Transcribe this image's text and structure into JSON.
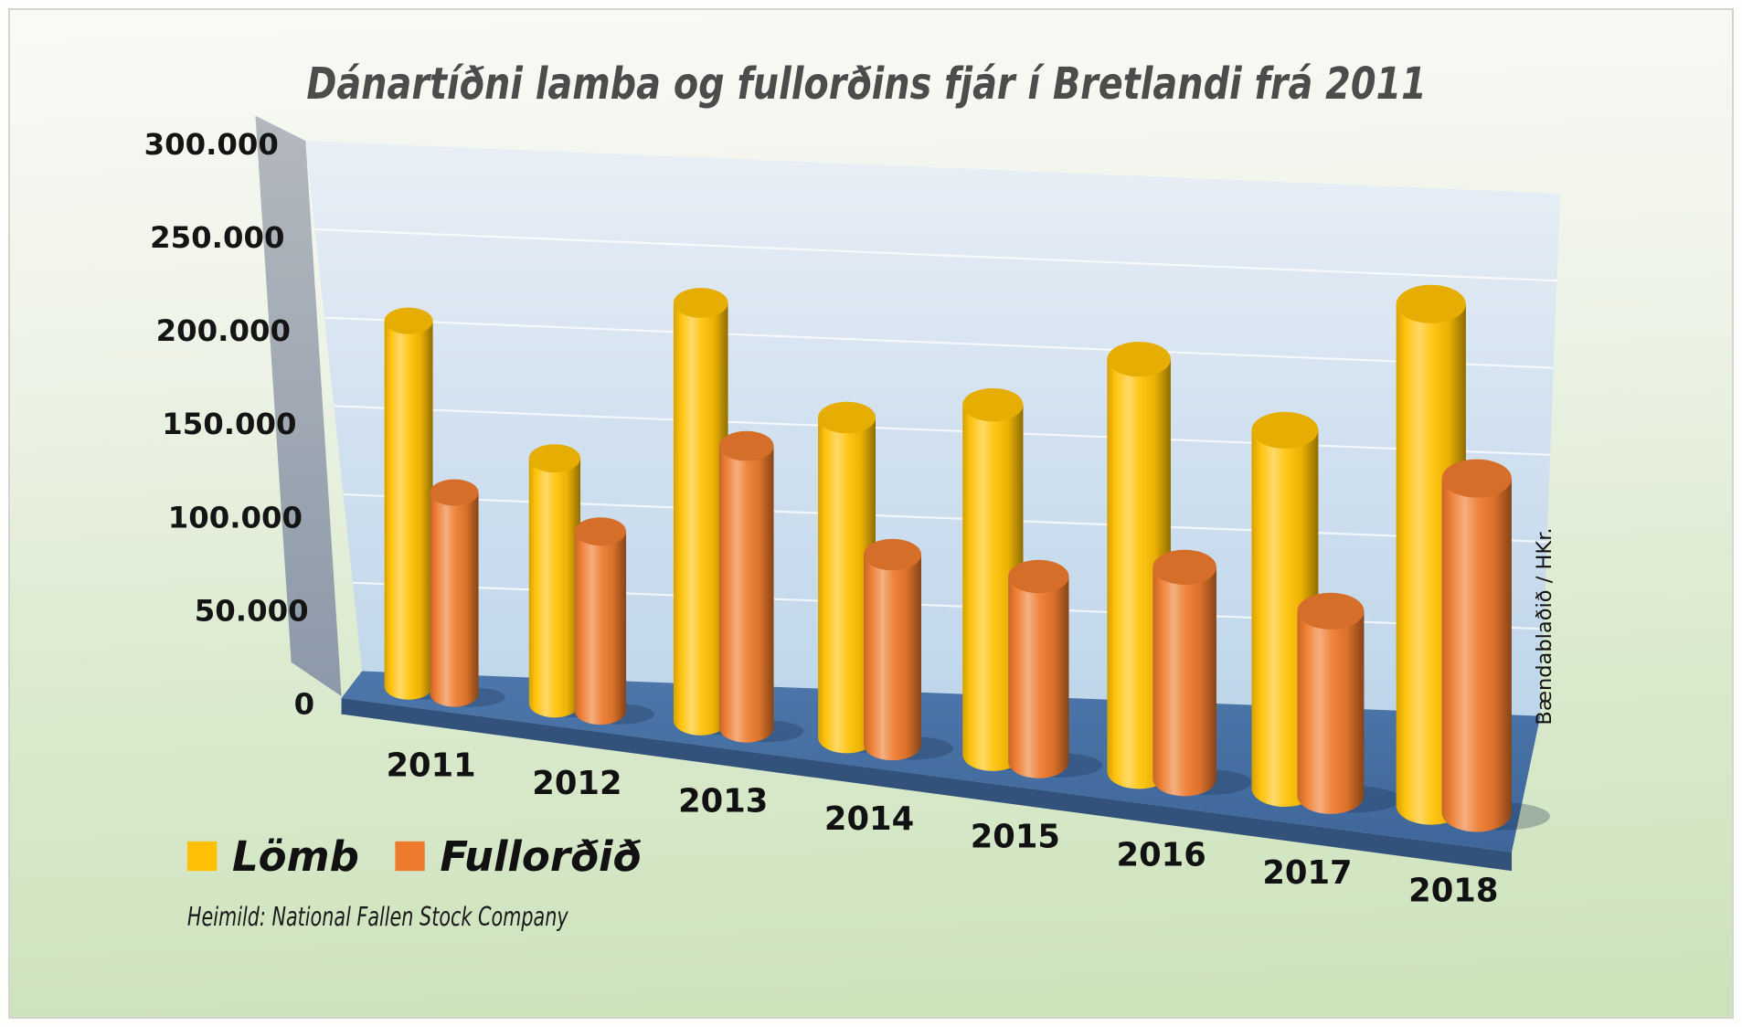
{
  "watermark": "Bændablaðið / HKr.",
  "chart_data": {
    "type": "bar",
    "variant": "3d-cylinder",
    "title": "Dánartíðni lamba og fullorðins fjár í Bretlandi frá 2011",
    "categories": [
      "2011",
      "2012",
      "2013",
      "2014",
      "2015",
      "2016",
      "2017",
      "2018"
    ],
    "series": [
      {
        "name": "Lömb",
        "color": "#FFC003",
        "values": [
          200000,
          130000,
          215000,
          160000,
          170000,
          195000,
          165000,
          225000
        ]
      },
      {
        "name": "Fullorðið",
        "color": "#ED7A2D",
        "values": [
          110000,
          95000,
          145000,
          95000,
          90000,
          100000,
          85000,
          150000
        ]
      }
    ],
    "yaxis": {
      "range": [
        0,
        300000
      ],
      "ticks": [
        {
          "label": "0",
          "value": 0
        },
        {
          "label": "50.000",
          "value": 50000
        },
        {
          "label": "100.000",
          "value": 100000
        },
        {
          "label": "150.000",
          "value": 150000
        },
        {
          "label": "200.000",
          "value": 200000
        },
        {
          "label": "250.000",
          "value": 250000
        },
        {
          "label": "300.000",
          "value": 300000
        }
      ]
    },
    "legend_position": "bottom-left",
    "source": "Heimild: National Fallen Stock Company"
  }
}
